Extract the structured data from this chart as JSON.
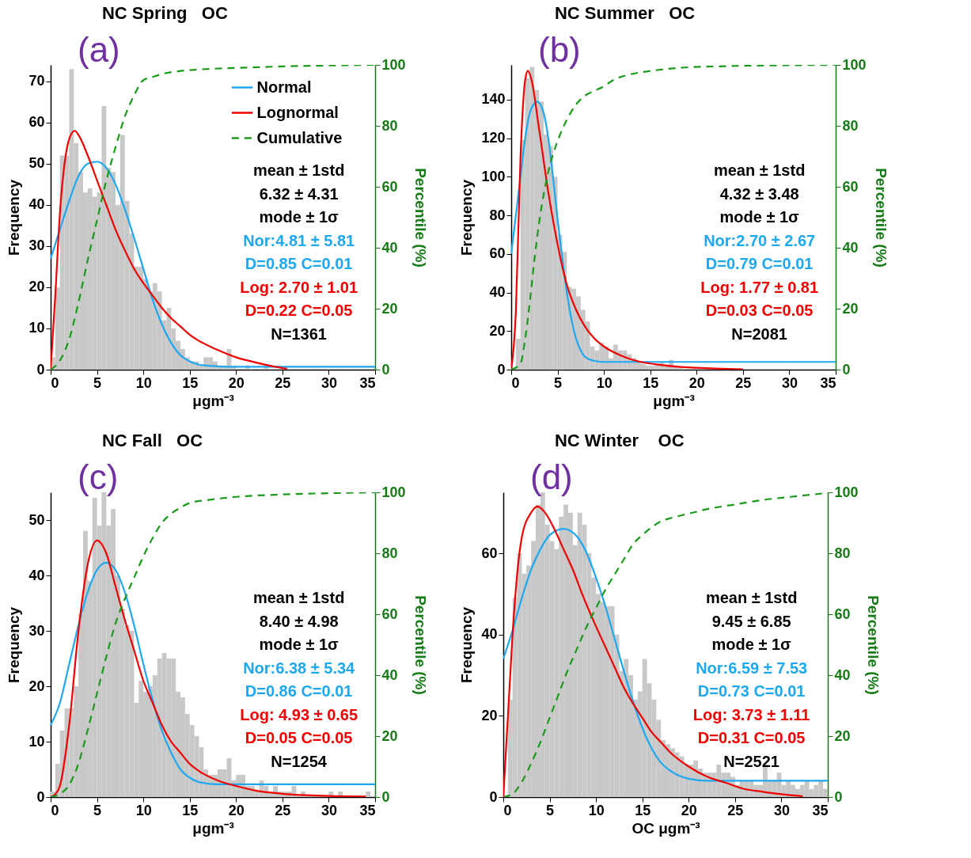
{
  "chart_data": [
    {
      "type": "histogram",
      "title": "NC Spring   OC",
      "xlabel": "μgm⁻³",
      "ylabel": "Frequency",
      "y2label": "Percentile (%)",
      "annotations": [
        "(a)",
        "mean ± 1std",
        "6.32 ± 4.31",
        "mode ± 1σ",
        "Nor:4.81 ± 5.81",
        "D=0.85 C=0.01",
        "Log: 2.70 ± 1.01",
        "D=0.22 C=0.05",
        "N=1361"
      ],
      "bins": [
        0,
        0.5,
        1,
        1.5,
        2,
        2.5,
        3,
        3.5,
        4,
        4.5,
        5,
        5.5,
        6,
        6.5,
        7,
        7.5,
        8,
        8.5,
        9,
        9.5,
        10,
        10.5,
        11,
        11.5,
        12,
        12.5,
        13,
        13.5,
        14,
        14.5,
        15,
        15.5,
        16,
        16.5,
        17,
        17.5,
        18,
        18.5,
        19,
        19.5,
        20,
        20.5,
        21,
        21.5,
        22,
        22.5,
        23,
        23.5,
        24,
        24.5,
        25,
        25.5,
        26,
        26.5,
        27,
        27.5,
        28,
        28.5,
        29,
        29.5,
        30,
        30.5,
        31,
        31.5,
        32,
        32.5,
        33,
        33.5,
        34,
        34.5,
        35
      ],
      "values": [
        3,
        20,
        52,
        52,
        73,
        55,
        48,
        43,
        44,
        42,
        43,
        64,
        49,
        48,
        40,
        57,
        41,
        33,
        25,
        25,
        22,
        19,
        21,
        19,
        12,
        15,
        10,
        7,
        5,
        3,
        2,
        2,
        1,
        3,
        3,
        2,
        1,
        1,
        5,
        1,
        0,
        0,
        1,
        0,
        0,
        0,
        1,
        0,
        0,
        0,
        0,
        0,
        0,
        0,
        0,
        0,
        0,
        0,
        0,
        0,
        0,
        0,
        0,
        0,
        0,
        0,
        0,
        0,
        0,
        0
      ],
      "color": "#c8c8c8",
      "series": [
        {
          "name": "Normal",
          "type": "line",
          "color": "#1ea8f0",
          "x": [
            0,
            1,
            2,
            3,
            4,
            5,
            6,
            7,
            8,
            9,
            10,
            11,
            12,
            13,
            14,
            15,
            16,
            18,
            20,
            35
          ],
          "values": [
            27,
            34,
            41,
            47,
            50,
            50.5,
            49,
            45,
            39,
            32,
            24.5,
            17,
            11,
            6.5,
            3.5,
            2,
            1.2,
            0.8,
            0.7,
            0.7
          ]
        },
        {
          "name": "Lognormal",
          "type": "line",
          "color": "#f00000",
          "x": [
            0,
            0.5,
            1,
            1.5,
            2,
            2.6,
            3,
            4,
            5,
            6,
            7,
            8,
            9,
            10,
            11,
            12,
            13,
            14,
            15,
            16,
            18,
            20,
            22,
            24,
            25.5
          ],
          "values": [
            0,
            18,
            38,
            50,
            56,
            58,
            57,
            52,
            46,
            40,
            34,
            29,
            24.5,
            21,
            18,
            15,
            12.5,
            10.5,
            8.5,
            7,
            4.8,
            3,
            1.8,
            0.8,
            0.2
          ]
        },
        {
          "name": "Cumulative",
          "type": "line",
          "axis": "y2",
          "line_style": "dashed",
          "color": "#1a9a1a",
          "x": [
            0,
            1,
            2,
            3,
            4,
            5,
            6,
            7,
            8,
            9,
            10,
            11,
            12,
            14,
            16,
            20,
            25,
            30,
            35
          ],
          "values": [
            0,
            3,
            10,
            22,
            36,
            49,
            62,
            73,
            83,
            90,
            95,
            96,
            97,
            98,
            98.5,
            99,
            99.5,
            99.8,
            100
          ]
        }
      ],
      "xlim": [
        0,
        35
      ],
      "xticks": [
        0,
        5,
        10,
        15,
        20,
        25,
        30,
        35
      ],
      "ylim": [
        0,
        74
      ],
      "yticks": [
        0,
        10,
        20,
        30,
        40,
        50,
        60,
        70
      ],
      "y2lim": [
        0,
        100
      ],
      "y2ticks": [
        0,
        20,
        40,
        60,
        80,
        100
      ],
      "legend": "top right"
    },
    {
      "type": "histogram",
      "title": "NC Summer   OC",
      "xlabel": "μgm⁻³",
      "ylabel": "Frequency",
      "y2label": "Percentile (%)",
      "annotations": [
        "(b)",
        "mean ± 1std",
        "4.32 ± 3.48",
        "mode ± 1σ",
        "Nor:2.70 ± 2.67",
        "D=0.79 C=0.01",
        "Log: 1.77 ± 0.81",
        "D=0.03 C=0.05",
        "N=2081"
      ],
      "bins": [
        0,
        0.5,
        1,
        1.5,
        2,
        2.5,
        3,
        3.5,
        4,
        4.5,
        5,
        5.5,
        6,
        6.5,
        7,
        7.5,
        8,
        8.5,
        9,
        9.5,
        10,
        10.5,
        11,
        11.5,
        12,
        12.5,
        13,
        13.5,
        14,
        14.5,
        15,
        15.5,
        16,
        16.5,
        17,
        17.5,
        18,
        18.5,
        19,
        19.5,
        20,
        20.5,
        21,
        21.5,
        22,
        22.5,
        23,
        23.5,
        24,
        24.5,
        25,
        25.5,
        26,
        26.5,
        27,
        27.5,
        28,
        28.5,
        29,
        29.5,
        30,
        30.5,
        31,
        31.5,
        32,
        32.5,
        33,
        33.5,
        34,
        34.5,
        35
      ],
      "values": [
        null,
        16,
        119,
        151,
        157,
        145,
        139,
        122,
        116,
        100,
        70,
        61,
        43,
        42,
        38,
        31,
        25,
        12,
        10,
        14,
        12,
        6,
        13,
        10,
        10,
        8,
        6,
        4,
        3,
        2,
        2,
        3,
        4,
        2,
        5,
        2,
        1,
        0,
        0,
        0,
        0,
        0,
        0,
        0,
        0,
        0,
        0,
        0,
        null,
        0,
        0,
        0,
        0,
        0,
        0,
        0,
        0,
        0,
        0,
        0,
        0,
        0,
        0,
        0,
        0,
        0,
        0,
        0,
        0,
        0
      ],
      "color": "#c8c8c8",
      "series": [
        {
          "name": "Normal",
          "type": "line",
          "color": "#1ea8f0",
          "x": [
            0,
            0.5,
            1,
            1.5,
            2,
            2.5,
            2.8,
            3.5,
            4,
            4.5,
            5,
            5.5,
            6,
            6.5,
            7,
            7.5,
            8,
            9,
            10,
            35
          ],
          "values": [
            60,
            80,
            100,
            120,
            133,
            138,
            139,
            133,
            120,
            100,
            78,
            58,
            40,
            26,
            16,
            10,
            6.5,
            4.5,
            4,
            4
          ]
        },
        {
          "name": "Lognormal",
          "type": "line",
          "color": "#f00000",
          "x": [
            0,
            0.5,
            1,
            1.5,
            1.8,
            2.2,
            3,
            4,
            5,
            6,
            7,
            8,
            9,
            10,
            12,
            14,
            16,
            18,
            20,
            25
          ],
          "values": [
            0,
            30,
            110,
            150,
            155,
            150,
            125,
            92,
            65,
            44,
            31,
            22,
            16,
            12,
            7,
            4,
            2.5,
            1.5,
            1,
            0.2
          ]
        },
        {
          "name": "Cumulative",
          "type": "line",
          "axis": "y2",
          "line_style": "dashed",
          "color": "#1a9a1a",
          "x": [
            0,
            1,
            1.5,
            2,
            2.5,
            3,
            4,
            5,
            6,
            7,
            8,
            9,
            10,
            11,
            13,
            15,
            18,
            22,
            35
          ],
          "values": [
            0,
            2,
            10,
            22,
            36,
            48,
            65,
            75,
            82,
            87,
            90,
            91.5,
            93,
            95,
            97,
            98,
            99,
            99.5,
            100
          ]
        }
      ],
      "xlim": [
        0,
        35
      ],
      "xticks": [
        0,
        5,
        10,
        15,
        20,
        25,
        30,
        35
      ],
      "ylim": [
        0,
        158
      ],
      "yticks": [
        0,
        20,
        40,
        60,
        80,
        100,
        120,
        140
      ],
      "y2lim": [
        0,
        100
      ],
      "y2ticks": [
        0,
        20,
        40,
        60,
        80,
        100
      ],
      "legend": "top right"
    },
    {
      "type": "histogram",
      "title": "NC Fall   OC",
      "xlabel": "μgm⁻³",
      "ylabel": "Frequency",
      "y2label": "Percentile (%)",
      "annotations": [
        "(c)",
        "mean ± 1std",
        "8.40 ± 4.98",
        "mode ± 1σ",
        "Nor:6.38 ± 5.34",
        "D=0.86 C=0.01",
        "Log: 4.93 ± 0.65",
        "D=0.05 C=0.05",
        "N=1254"
      ],
      "bins": [
        0,
        0.5,
        1,
        1.5,
        2,
        2.5,
        3,
        3.5,
        4,
        4.5,
        5,
        5.5,
        6,
        6.5,
        7,
        7.5,
        8,
        8.5,
        9,
        9.5,
        10,
        10.5,
        11,
        11.5,
        12,
        12.5,
        13,
        13.5,
        14,
        14.5,
        15,
        15.5,
        16,
        16.5,
        17,
        17.5,
        18,
        18.5,
        19,
        19.5,
        20,
        20.5,
        21,
        21.5,
        22,
        22.5,
        23,
        23.5,
        24,
        24.5,
        25,
        25.5,
        26,
        26.5,
        27,
        27.5,
        28,
        28.5,
        29,
        29.5,
        30,
        30.5,
        31,
        31.5,
        32,
        32.5,
        33,
        33.5,
        34,
        34.5,
        35
      ],
      "values": [
        1,
        6,
        12,
        16,
        16,
        20,
        33,
        48,
        39,
        54,
        49,
        55,
        49,
        52,
        40,
        34,
        31,
        30,
        17,
        21,
        19,
        20,
        22,
        25,
        26,
        25,
        25,
        19,
        18,
        15,
        13,
        11,
        9,
        5,
        4,
        4,
        5,
        5,
        7,
        3,
        4,
        4,
        2,
        2,
        1,
        3,
        2,
        1,
        2,
        1,
        1,
        1,
        2,
        0,
        1,
        0,
        0,
        0,
        0,
        0,
        1,
        0,
        1,
        0,
        0,
        0,
        0,
        0,
        1,
        0
      ],
      "color": "#c8c8c8",
      "series": [
        {
          "name": "Normal",
          "type": "line",
          "color": "#1ea8f0",
          "x": [
            0,
            1,
            2,
            3,
            4,
            5,
            6,
            7,
            8,
            9,
            10,
            11,
            12,
            13,
            14,
            15,
            16,
            18,
            35
          ],
          "values": [
            13,
            17,
            24,
            31,
            37,
            41,
            42.3,
            41,
            37,
            31,
            24,
            17.5,
            12,
            8,
            5,
            3.5,
            2.7,
            2.3,
            2.3
          ]
        },
        {
          "name": "Lognormal",
          "type": "line",
          "color": "#f00000",
          "x": [
            0,
            0.5,
            1,
            2,
            3,
            4,
            5,
            6,
            7,
            8,
            9,
            10,
            11,
            12,
            13,
            14,
            15,
            16,
            18,
            20,
            22,
            25,
            30,
            34
          ],
          "values": [
            0,
            0.5,
            2,
            13,
            30,
            42,
            46.3,
            44,
            38,
            32,
            26.5,
            21,
            17,
            13,
            10,
            8,
            6,
            4.7,
            3,
            2,
            1.2,
            0.6,
            0.2,
            0.1
          ]
        },
        {
          "name": "Cumulative",
          "type": "line",
          "axis": "y2",
          "line_style": "dashed",
          "color": "#1a9a1a",
          "x": [
            0,
            1,
            2,
            3,
            4,
            5,
            6,
            7,
            8,
            9,
            10,
            11,
            12,
            13,
            14,
            15,
            17,
            20,
            25,
            30,
            35
          ],
          "values": [
            0,
            1,
            4,
            11,
            22,
            34,
            46,
            57,
            65,
            72,
            79,
            85,
            90,
            93,
            95,
            96.5,
            97.5,
            98.5,
            99.3,
            99.7,
            100
          ]
        }
      ],
      "xlim": [
        0,
        35
      ],
      "xticks": [
        0,
        5,
        10,
        15,
        20,
        25,
        30,
        35
      ],
      "ylim": [
        0,
        55
      ],
      "yticks": [
        0,
        10,
        20,
        30,
        40,
        50
      ],
      "y2lim": [
        0,
        100
      ],
      "y2ticks": [
        0,
        20,
        40,
        60,
        80,
        100
      ],
      "legend": "top right"
    },
    {
      "type": "histogram",
      "title": "NC Winter    OC",
      "xlabel": "OC μgm⁻³",
      "ylabel": "Frequency",
      "y2label": "Percentile (%)",
      "annotations": [
        "(d)",
        "mean ± 1std",
        "9.45 ± 6.85",
        "mode ± 1σ",
        "Nor:6.59 ± 7.53",
        "D=0.73 C=0.01",
        "Log: 3.73 ± 1.11",
        "D=0.31 C=0.05",
        "N=2521"
      ],
      "bins": [
        0,
        0.5,
        1,
        1.5,
        2,
        2.5,
        3,
        3.5,
        4,
        4.5,
        5,
        5.5,
        6,
        6.5,
        7,
        7.5,
        8,
        8.5,
        9,
        9.5,
        10,
        10.5,
        11,
        11.5,
        12,
        12.5,
        13,
        13.5,
        14,
        14.5,
        15,
        15.5,
        16,
        16.5,
        17,
        17.5,
        18,
        18.5,
        19,
        19.5,
        20,
        20.5,
        21,
        21.5,
        22,
        22.5,
        23,
        23.5,
        24,
        24.5,
        25,
        25.5,
        26,
        26.5,
        27,
        27.5,
        28,
        28.5,
        29,
        29.5,
        30,
        30.5,
        31,
        31.5,
        32,
        32.5,
        33,
        33.5,
        34,
        34.5,
        35
      ],
      "values": [
        0,
        24,
        49,
        60,
        55,
        57,
        63,
        72,
        75,
        67,
        63,
        61,
        69,
        72,
        70,
        62,
        70,
        67,
        60,
        54,
        50,
        48,
        47,
        47,
        40,
        31,
        34,
        30,
        24,
        26,
        34,
        28,
        24,
        19,
        14,
        13,
        12,
        11,
        10,
        8,
        8,
        9,
        7,
        6,
        6,
        6,
        8,
        6,
        6,
        5,
        3,
        4,
        4,
        4,
        3,
        3,
        8,
        4,
        4,
        6,
        3,
        4,
        3,
        2,
        3,
        4,
        2,
        3,
        4,
        2
      ],
      "color": "#c8c8c8",
      "series": [
        {
          "name": "Normal",
          "type": "line",
          "color": "#1ea8f0",
          "x": [
            0,
            1,
            2,
            3,
            4,
            5,
            6.5,
            8,
            9,
            10,
            11,
            12,
            13,
            14,
            15,
            16,
            17,
            18,
            20,
            22,
            35
          ],
          "values": [
            34,
            41,
            49,
            56,
            61,
            64.5,
            66,
            64,
            60,
            54,
            47,
            39,
            31,
            23.5,
            17,
            12,
            8.5,
            6.5,
            4.5,
            4,
            4
          ]
        },
        {
          "name": "Lognormal",
          "type": "line",
          "color": "#f00000",
          "x": [
            0,
            0.5,
            1,
            1.5,
            2,
            3,
            3.7,
            4.5,
            5.5,
            6.5,
            7.5,
            8.5,
            10,
            11,
            12,
            13,
            14,
            15,
            16,
            17,
            18,
            20,
            22,
            24,
            26,
            28,
            30,
            32.3
          ],
          "values": [
            0,
            20,
            40,
            55,
            64,
            70,
            71.5,
            70,
            66,
            61,
            56,
            50,
            42,
            37,
            32,
            27,
            23,
            19.5,
            16,
            13.5,
            11,
            7.5,
            5,
            3.5,
            2,
            1.3,
            0.7,
            0.2
          ]
        },
        {
          "name": "Cumulative",
          "type": "line",
          "axis": "y2",
          "line_style": "dashed",
          "color": "#1a9a1a",
          "x": [
            0,
            1,
            2,
            3,
            4,
            5,
            6,
            7,
            8,
            9,
            10,
            11,
            12,
            13,
            14,
            15,
            16,
            17,
            18,
            20,
            22,
            25,
            28,
            31,
            35
          ],
          "values": [
            0,
            1,
            5,
            11,
            18,
            26,
            34,
            42,
            49,
            56,
            62,
            68,
            73,
            78,
            83,
            86,
            88.5,
            90.5,
            91.5,
            93,
            94.5,
            96,
            97.5,
            98.5,
            99.8
          ]
        }
      ],
      "xlim": [
        0,
        35
      ],
      "xticks": [
        0,
        5,
        10,
        15,
        20,
        25,
        30,
        35
      ],
      "ylim": [
        0,
        75
      ],
      "yticks": [
        0,
        20,
        40,
        60
      ],
      "y2lim": [
        0,
        100
      ],
      "y2ticks": [
        0,
        20,
        40,
        60,
        80,
        100
      ],
      "legend": "top right"
    }
  ]
}
